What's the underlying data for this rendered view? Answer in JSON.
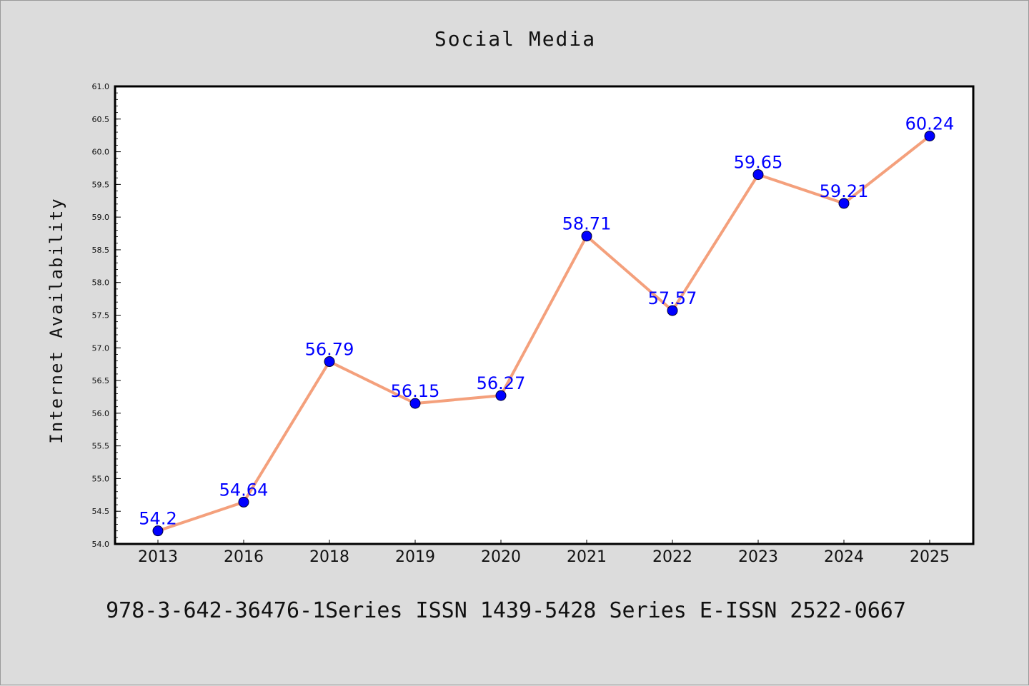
{
  "chart_data": {
    "type": "line",
    "title": "Social Media",
    "xlabel": "",
    "ylabel": "Internet Availability",
    "categories": [
      "2013",
      "2016",
      "2018",
      "2019",
      "2020",
      "2021",
      "2022",
      "2023",
      "2024",
      "2025"
    ],
    "series": [
      {
        "values": [
          54.2,
          54.64,
          56.79,
          56.15,
          56.27,
          58.71,
          57.57,
          59.65,
          59.21,
          60.24
        ],
        "data_labels": [
          "54.2",
          "54.64",
          "56.79",
          "56.15",
          "56.27",
          "58.71",
          "57.57",
          "59.65",
          "59.21",
          "60.24"
        ]
      }
    ],
    "ylim": [
      54.0,
      61.0
    ],
    "yticks": [
      "54.0",
      "54.5",
      "55.0",
      "55.5",
      "56.0",
      "56.5",
      "57.0",
      "57.5",
      "58.0",
      "58.5",
      "59.0",
      "59.5",
      "60.0",
      "60.5",
      "61.0"
    ],
    "grid": false,
    "legend": "none",
    "colors": {
      "line": "#f4a07c",
      "marker": "#0000ff",
      "label": "#0000ff",
      "background": "#dcdcdc",
      "plot_background": "#ffffff"
    }
  },
  "footer": {
    "text": "978-3-642-36476-1Series ISSN 1439-5428 Series E-ISSN 2522-0667"
  }
}
